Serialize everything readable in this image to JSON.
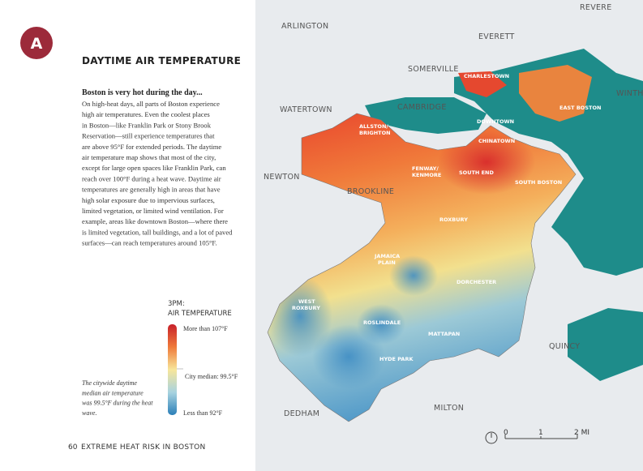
{
  "badge": "A",
  "title": "DAYTIME AIR TEMPERATURE",
  "subtitle": "Boston is very hot during the day...",
  "body_lines": [
    "On high-heat days, all parts of Boston experience",
    "high air temperatures. Even the coolest places",
    "in Boston—like Franklin Park or Stony Brook",
    "Reservation—still experience temperatures that",
    "are above 95°F for extended periods. The daytime",
    "air temperature map shows that most of the city,",
    "except for large open spaces like Franklin Park, can",
    "reach over 100°F during a heat wave. Daytime air",
    "temperatures are generally high in areas that have",
    "high solar exposure due to impervious surfaces,",
    "limited vegetation, or limited wind ventilation. For",
    "example, areas like downtown Boston—where there",
    "is limited vegetation, tall buildings, and a lot of paved",
    "surfaces—can reach temperatures around 105°F."
  ],
  "legend": {
    "title_lines": [
      "3PM:",
      "AIR TEMPERATURE"
    ],
    "high": "More than 107°F",
    "median": "City median: 99.5°F",
    "low": "Less than 92°F"
  },
  "note_lines": [
    "The citywide daytime",
    "median air temperature",
    "was 99.5°F during the heat",
    "wave."
  ],
  "footer": {
    "page": "60",
    "text": "EXTREME HEAT RISK IN BOSTON"
  },
  "map": {
    "places": [
      "ARLINGTON",
      "REVERE",
      "EVERETT",
      "SOMERVILLE",
      "CHARLESTOWN",
      "WINTHROP",
      "WATERTOWN",
      "CAMBRIDGE",
      "EAST BOSTON",
      "DOWNTOWN",
      "ALLSTON/",
      "BRIGHTON",
      "CHINATOWN",
      "NEWTON",
      "FENWAY/",
      "KENMORE",
      "SOUTH END",
      "SOUTH BOSTON",
      "BROOKLINE",
      "ROXBURY",
      "JAMAICA",
      "PLAIN",
      "DORCHESTER",
      "WEST",
      "ROXBURY",
      "ROSLINDALE",
      "QUINCY",
      "MATTAPAN",
      "HYDE PARK",
      "MILTON",
      "DEDHAM"
    ],
    "scale": [
      "0",
      "1",
      "2 MI"
    ]
  }
}
